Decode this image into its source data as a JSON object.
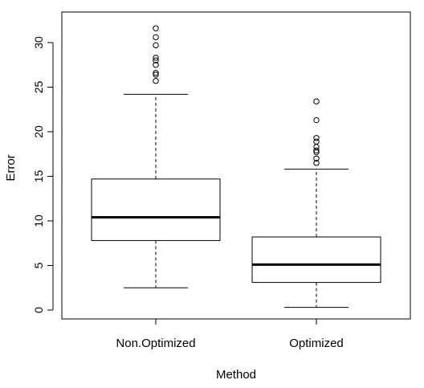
{
  "chart_data": {
    "type": "boxplot",
    "xlabel": "Method",
    "ylabel": "Error",
    "ylim": [
      -1,
      32.5
    ],
    "yticks": [
      0,
      5,
      10,
      15,
      20,
      25,
      30
    ],
    "ytick_labels": [
      "0",
      "5",
      "10",
      "15",
      "20",
      "25",
      "30"
    ],
    "categories": [
      "Non.Optimized",
      "Optimized"
    ],
    "boxes": [
      {
        "name": "Non.Optimized",
        "whisker_low": 2.5,
        "q1": 7.8,
        "median": 10.4,
        "q3": 14.7,
        "whisker_high": 24.2,
        "outliers": [
          25.7,
          26.4,
          26.6,
          27.5,
          28.0,
          28.3,
          29.7,
          30.6,
          31.6
        ]
      },
      {
        "name": "Optimized",
        "whisker_low": 0.3,
        "q1": 3.1,
        "median": 5.1,
        "q3": 8.2,
        "whisker_high": 15.8,
        "outliers": [
          16.5,
          17.0,
          17.7,
          17.9,
          18.3,
          18.9,
          19.3,
          21.3,
          23.4
        ]
      }
    ],
    "grid": false,
    "legend": "none"
  }
}
